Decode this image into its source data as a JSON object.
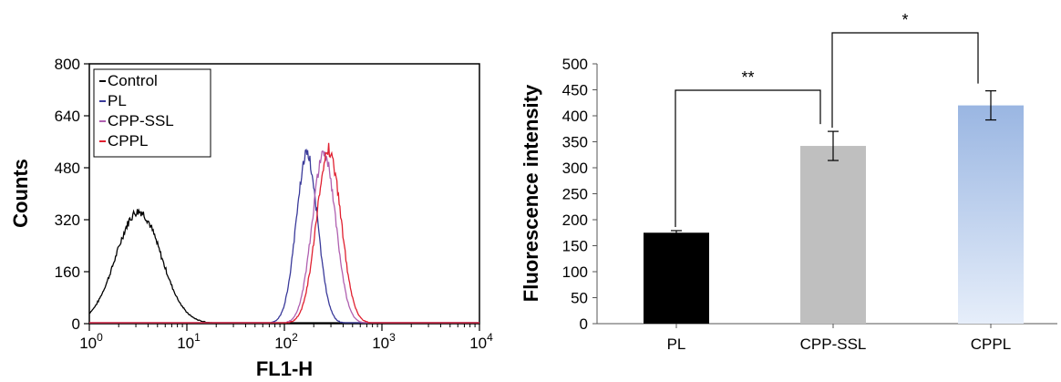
{
  "chart_data": [
    {
      "type": "line",
      "xlabel": "FL1-H",
      "ylabel": "Counts",
      "x_scale": "log",
      "xlim": [
        1,
        10000
      ],
      "ylim": [
        0,
        800
      ],
      "y_ticks": [
        "0",
        "160",
        "320",
        "480",
        "640",
        "800"
      ],
      "x_ticks": [
        {
          "base": "10",
          "exp": "0",
          "value": 1
        },
        {
          "base": "10",
          "exp": "1",
          "value": 10
        },
        {
          "base": "10",
          "exp": "2",
          "value": 100
        },
        {
          "base": "10",
          "exp": "3",
          "value": 1000
        },
        {
          "base": "10",
          "exp": "4",
          "value": 10000
        }
      ],
      "legend_position": "top-left",
      "series": [
        {
          "name": "Control",
          "color": "#000000",
          "peak_x": 3.2,
          "peak_y": 345,
          "width_decades": 0.23
        },
        {
          "name": "PL",
          "color": "#3a3a9a",
          "peak_x": 170,
          "peak_y": 520,
          "width_decades": 0.11
        },
        {
          "name": "CPP-SSL",
          "color": "#b060b0",
          "peak_x": 255,
          "peak_y": 525,
          "width_decades": 0.12
        },
        {
          "name": "CPPL",
          "color": "#e02030",
          "peak_x": 285,
          "peak_y": 535,
          "width_decades": 0.125
        }
      ]
    },
    {
      "type": "bar",
      "ylabel": "Fluorescence intensity",
      "ylim": [
        0,
        500
      ],
      "y_ticks": [
        "0",
        "50",
        "100",
        "150",
        "200",
        "250",
        "300",
        "350",
        "400",
        "450",
        "500"
      ],
      "categories": [
        "PL",
        "CPP-SSL",
        "CPPL"
      ],
      "values": [
        175,
        342,
        420
      ],
      "errors": [
        4,
        28,
        28
      ],
      "colors": [
        "#000000",
        "#bfbfbf",
        "#a8c0e6"
      ],
      "significance": [
        {
          "label": "**",
          "from": 0,
          "to": 1
        },
        {
          "label": "*",
          "from": 1,
          "to": 2
        }
      ]
    }
  ]
}
